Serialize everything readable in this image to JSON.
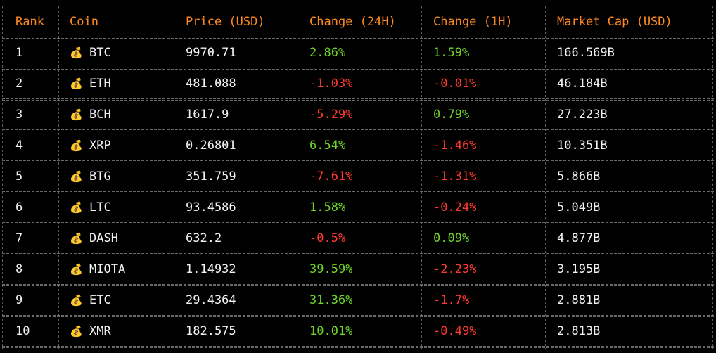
{
  "headers": [
    "Rank",
    "Coin",
    "Price (USD)",
    "Change (24H)",
    "Change (1H)",
    "Market Cap (USD)"
  ],
  "coin_icon": "money-bag-icon",
  "colors": {
    "header": "#ff8a1f",
    "positive": "#6fd329",
    "negative": "#ff3b30",
    "text": "#f2f2f2",
    "background": "#000000"
  },
  "rows": [
    {
      "rank": "1",
      "coin": "BTC",
      "price": "9970.71",
      "change_24h": "2.86%",
      "change_1h": "1.59%",
      "market_cap": "166.569B"
    },
    {
      "rank": "2",
      "coin": "ETH",
      "price": "481.088",
      "change_24h": "-1.03%",
      "change_1h": "-0.01%",
      "market_cap": "46.184B"
    },
    {
      "rank": "3",
      "coin": "BCH",
      "price": "1617.9",
      "change_24h": "-5.29%",
      "change_1h": "0.79%",
      "market_cap": "27.223B"
    },
    {
      "rank": "4",
      "coin": "XRP",
      "price": "0.26801",
      "change_24h": "6.54%",
      "change_1h": "-1.46%",
      "market_cap": "10.351B"
    },
    {
      "rank": "5",
      "coin": "BTG",
      "price": "351.759",
      "change_24h": "-7.61%",
      "change_1h": "-1.31%",
      "market_cap": "5.866B"
    },
    {
      "rank": "6",
      "coin": "LTC",
      "price": "93.4586",
      "change_24h": "1.58%",
      "change_1h": "-0.24%",
      "market_cap": "5.049B"
    },
    {
      "rank": "7",
      "coin": "DASH",
      "price": "632.2",
      "change_24h": "-0.5%",
      "change_1h": "0.09%",
      "market_cap": "4.877B"
    },
    {
      "rank": "8",
      "coin": "MIOTA",
      "price": "1.14932",
      "change_24h": "39.59%",
      "change_1h": "-2.23%",
      "market_cap": "3.195B"
    },
    {
      "rank": "9",
      "coin": "ETC",
      "price": "29.4364",
      "change_24h": "31.36%",
      "change_1h": "-1.7%",
      "market_cap": "2.881B"
    },
    {
      "rank": "10",
      "coin": "XMR",
      "price": "182.575",
      "change_24h": "10.01%",
      "change_1h": "-0.49%",
      "market_cap": "2.813B"
    }
  ]
}
